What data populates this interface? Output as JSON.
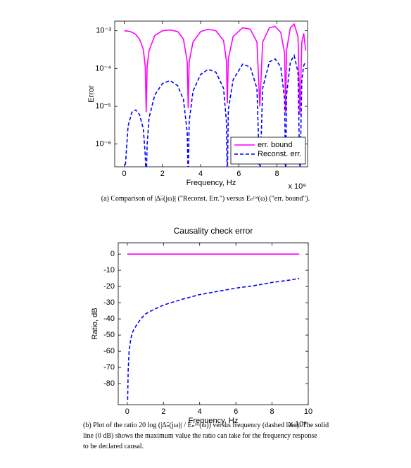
{
  "chart_data": [
    {
      "type": "line",
      "ylabel": "Error",
      "xlabel": "Frequency, Hz",
      "x_scale_label": "x 10⁹",
      "log_y": true,
      "legend": "lower right",
      "xlim": [
        -0.5,
        9.6
      ],
      "ylim": [
        2.5e-07,
        0.0018
      ],
      "xticks": [
        0,
        2,
        4,
        6,
        8
      ],
      "yticks": [
        {
          "value": 1e-06,
          "label": "10⁻⁶"
        },
        {
          "value": 1e-05,
          "label": "10⁻⁵"
        },
        {
          "value": 0.0001,
          "label": "10⁻⁴"
        },
        {
          "value": 0.001,
          "label": "10⁻³"
        }
      ],
      "x": [
        0,
        0.2,
        0.4,
        0.6,
        0.8,
        1.0,
        1.1,
        1.15,
        1.2,
        1.3,
        1.6,
        2.0,
        2.4,
        2.8,
        3.1,
        3.3,
        3.35,
        3.4,
        3.6,
        4.0,
        4.4,
        4.8,
        5.2,
        5.35,
        5.4,
        5.45,
        5.7,
        6.2,
        6.6,
        6.95,
        7.1,
        7.25,
        7.6,
        7.9,
        8.2,
        8.4,
        8.45,
        8.5,
        8.7,
        8.9,
        9.1,
        9.2,
        9.3,
        9.4,
        9.5
      ],
      "series": [
        {
          "name": "err. bound",
          "color": "#ff00ff",
          "linestyle": "solid",
          "values": [
            0.001,
            0.00098,
            0.00092,
            0.0008,
            0.0006,
            0.00032,
            0.00011,
            7e-06,
            0.00012,
            0.0003,
            0.00075,
            0.001,
            0.00105,
            0.00095,
            0.0006,
            0.00015,
            9e-06,
            0.00015,
            0.0005,
            0.00095,
            0.0011,
            0.001,
            0.00055,
            0.00016,
            1.2e-05,
            0.00018,
            0.0007,
            0.0012,
            0.0011,
            0.0005,
            1e-05,
            0.0005,
            0.0012,
            0.0013,
            0.0009,
            0.00025,
            7e-06,
            0.0003,
            0.0012,
            0.0015,
            0.0007,
            6e-06,
            0.0005,
            0.00085,
            0.0003
          ]
        },
        {
          "name": "Reconst. err.",
          "color": "#0000ff",
          "linestyle": "dashed",
          "values": [
            1e-07,
            3e-06,
            7e-06,
            8e-06,
            6e-06,
            2.5e-06,
            5e-07,
            1e-07,
            1e-06,
            5e-06,
            2e-05,
            4e-05,
            4.8e-05,
            3.5e-05,
            1.5e-05,
            2e-06,
            1e-07,
            4e-06,
            2.5e-05,
            7e-05,
            9.5e-05,
            8e-05,
            3e-05,
            4e-06,
            1e-07,
            8e-06,
            5e-05,
            0.00013,
            0.00011,
            3e-05,
            1e-07,
            3e-05,
            0.00015,
            0.00018,
            0.00011,
            1.5e-05,
            1e-07,
            2e-05,
            0.00015,
            0.00022,
            8e-05,
            1e-07,
            5e-05,
            0.00012,
            0.00015
          ]
        }
      ],
      "caption": [
        "(a) Comparison of |Δ̃ₙ(jω)| (\"Reconst. Err.\") versus Eₙᵗᵒᵗ(ω) (\"err. bound\")."
      ]
    },
    {
      "type": "line",
      "title": "Causality check error",
      "ylabel": "Ratio, dB",
      "xlabel": "Frequency, Hz",
      "x_scale_label": "x 10⁹",
      "xlim": [
        -0.5,
        10
      ],
      "ylim": [
        -93,
        7
      ],
      "xticks": [
        0,
        2,
        4,
        6,
        8,
        10
      ],
      "yticks": [
        -80,
        -70,
        -60,
        -50,
        -40,
        -30,
        -20,
        -10,
        0
      ],
      "x": [
        0,
        0.02,
        0.05,
        0.1,
        0.2,
        0.3,
        0.5,
        0.75,
        1,
        1.5,
        2,
        3,
        4,
        5,
        6,
        7,
        8,
        9,
        9.5
      ],
      "series": [
        {
          "color": "#ff00ff",
          "linestyle": "solid",
          "values": [
            0,
            0,
            0,
            0,
            0,
            0,
            0,
            0,
            0,
            0,
            0,
            0,
            0,
            0,
            0,
            0,
            0,
            0,
            0
          ]
        },
        {
          "color": "#0000ff",
          "linestyle": "dashed",
          "values": [
            null,
            -90,
            -72,
            -60,
            -52,
            -48,
            -44,
            -40,
            -37,
            -34,
            -31.5,
            -28,
            -25,
            -23,
            -21,
            -19.5,
            -17.5,
            -16,
            -15
          ]
        }
      ],
      "caption": [
        "(b) Plot of the ratio 20 log (|Δ̃ₙ(jω)| / Eₙᵗᵒᵗ(ω)) versus frequency (dashed line). The solid",
        "line (0 dB) shows the maximum value the ratio can take for the frequency response",
        "to be declared causal."
      ]
    }
  ]
}
